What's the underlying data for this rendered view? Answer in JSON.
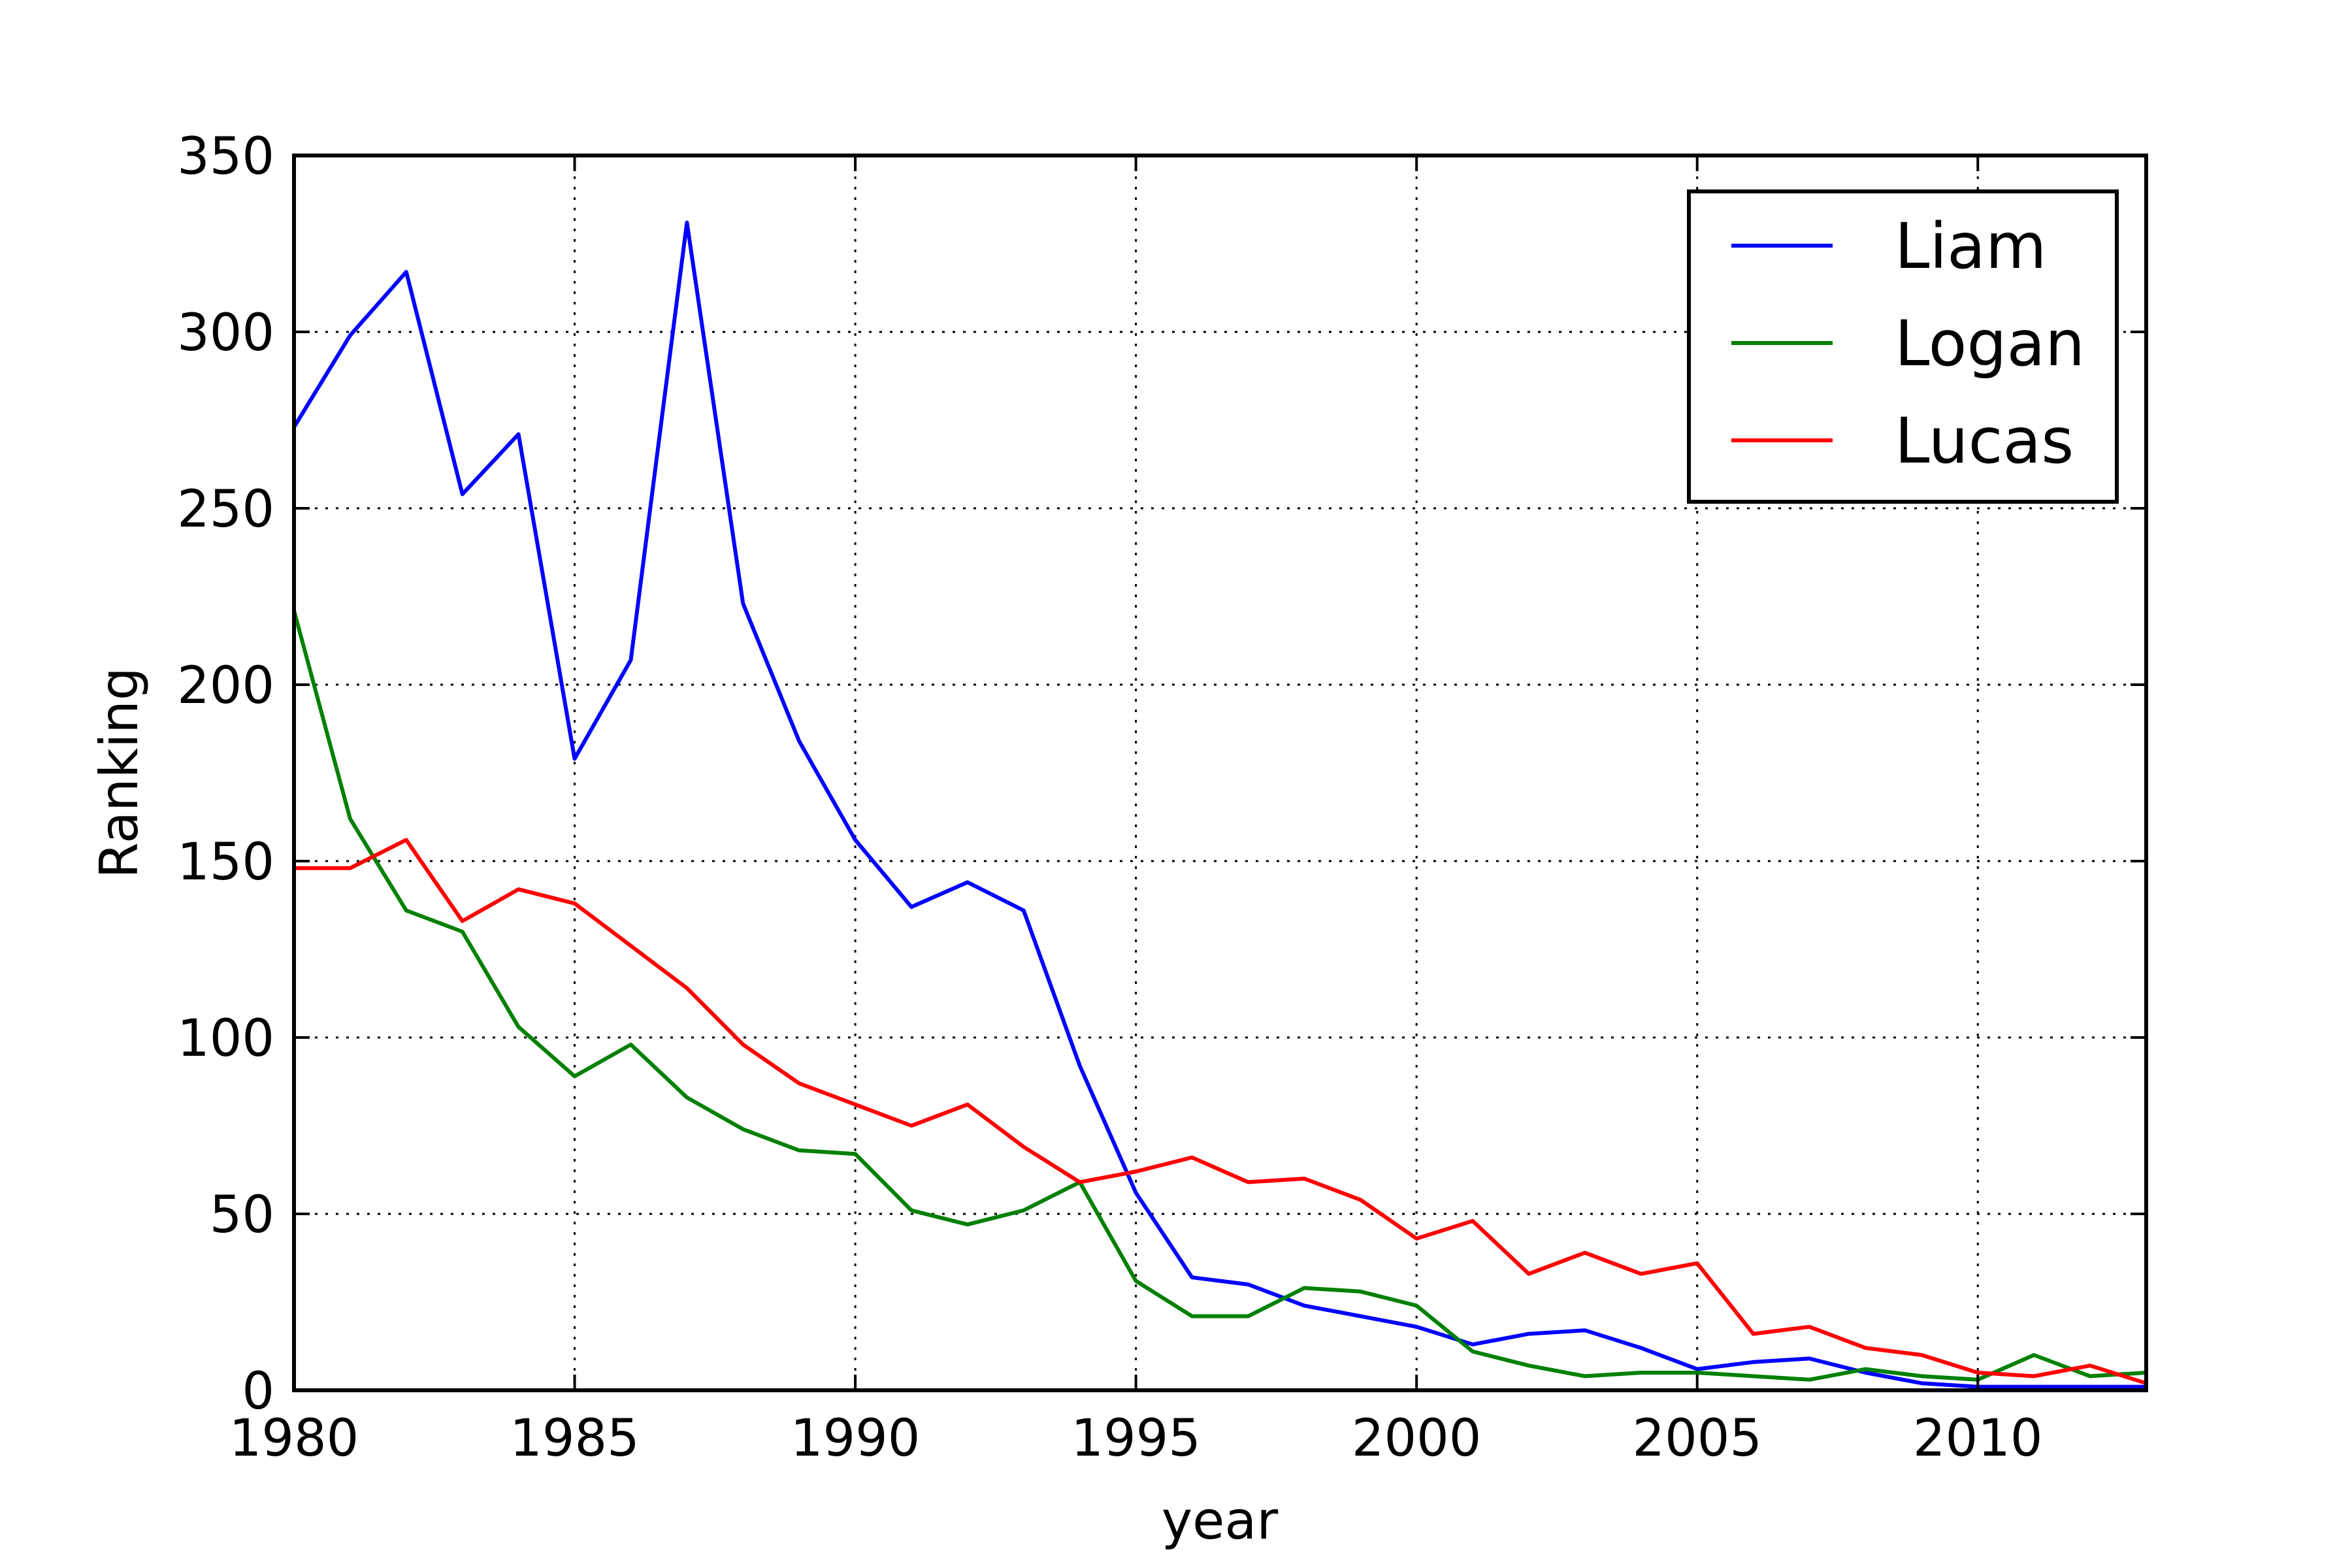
{
  "chart_data": {
    "type": "line",
    "xlabel": "year",
    "ylabel": "Ranking",
    "xlim": [
      1980,
      2013
    ],
    "ylim": [
      0,
      350
    ],
    "xticks": [
      1980,
      1985,
      1990,
      1995,
      2000,
      2005,
      2010
    ],
    "yticks": [
      0,
      50,
      100,
      150,
      200,
      250,
      300,
      350
    ],
    "grid": true,
    "legend_position": "top-right",
    "x": [
      1980,
      1981,
      1982,
      1983,
      1984,
      1985,
      1986,
      1987,
      1988,
      1989,
      1990,
      1991,
      1992,
      1993,
      1994,
      1995,
      1996,
      1997,
      1998,
      1999,
      2000,
      2001,
      2002,
      2003,
      2004,
      2005,
      2006,
      2007,
      2008,
      2009,
      2010,
      2011,
      2012,
      2013
    ],
    "series": [
      {
        "name": "Liam",
        "color": "#0000ff",
        "values": [
          273,
          299,
          317,
          254,
          271,
          179,
          207,
          331,
          223,
          184,
          156,
          137,
          144,
          136,
          92,
          56,
          32,
          30,
          24,
          21,
          18,
          13,
          16,
          17,
          12,
          6,
          8,
          9,
          5,
          2,
          1,
          1,
          1,
          1
        ]
      },
      {
        "name": "Logan",
        "color": "#008000",
        "values": [
          221,
          162,
          136,
          130,
          103,
          89,
          98,
          83,
          74,
          68,
          67,
          51,
          47,
          51,
          59,
          31,
          21,
          21,
          29,
          28,
          24,
          11,
          7,
          4,
          5,
          5,
          4,
          3,
          6,
          4,
          3,
          10,
          4,
          5
        ]
      },
      {
        "name": "Lucas",
        "color": "#ff0000",
        "values": [
          148,
          148,
          156,
          133,
          142,
          138,
          126,
          114,
          98,
          87,
          81,
          75,
          81,
          69,
          59,
          62,
          66,
          59,
          60,
          54,
          43,
          48,
          33,
          39,
          33,
          36,
          16,
          18,
          12,
          10,
          5,
          4,
          7,
          2
        ]
      }
    ]
  }
}
